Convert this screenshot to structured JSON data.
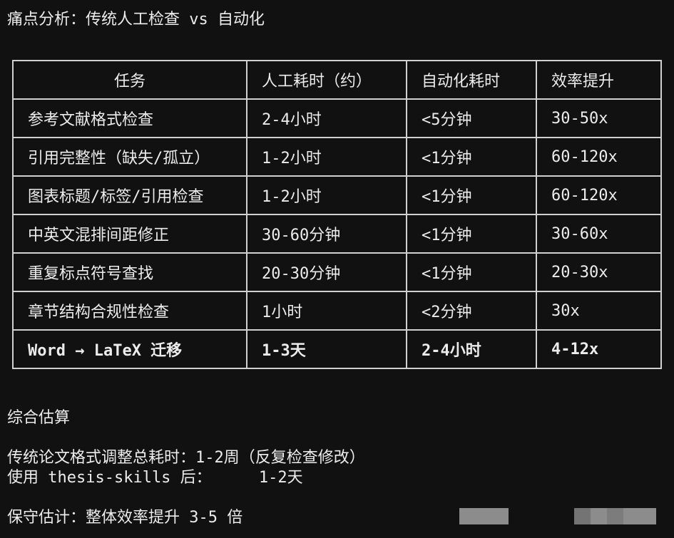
{
  "title": "痛点分析：传统人工检查 vs 自动化",
  "table": {
    "headers": [
      "任务",
      "人工耗时（约）",
      "自动化耗时",
      "效率提升"
    ],
    "rows": [
      [
        "参考文献格式检查",
        "2-4小时",
        "<5分钟",
        "30-50x"
      ],
      [
        "引用完整性（缺失/孤立）",
        "1-2小时",
        "<1分钟",
        "60-120x"
      ],
      [
        "图表标题/标签/引用检查",
        "1-2小时",
        "<1分钟",
        "60-120x"
      ],
      [
        "中英文混排间距修正",
        "30-60分钟",
        "<1分钟",
        "30-60x"
      ],
      [
        "重复标点符号查找",
        "20-30分钟",
        "<1分钟",
        "20-30x"
      ],
      [
        "章节结构合规性检查",
        "1小时",
        "<2分钟",
        "30x"
      ],
      [
        "Word → LaTeX 迁移",
        "1-3天",
        "2-4小时",
        "4-12x"
      ]
    ]
  },
  "summary": {
    "heading": "综合估算",
    "line1": "传统论文格式调整总耗时：1-2周（反复检查修改）",
    "line2": "使用 thesis-skills 后：     1-2天",
    "conclusion": "保守估计：整体效率提升 3-5 倍"
  }
}
